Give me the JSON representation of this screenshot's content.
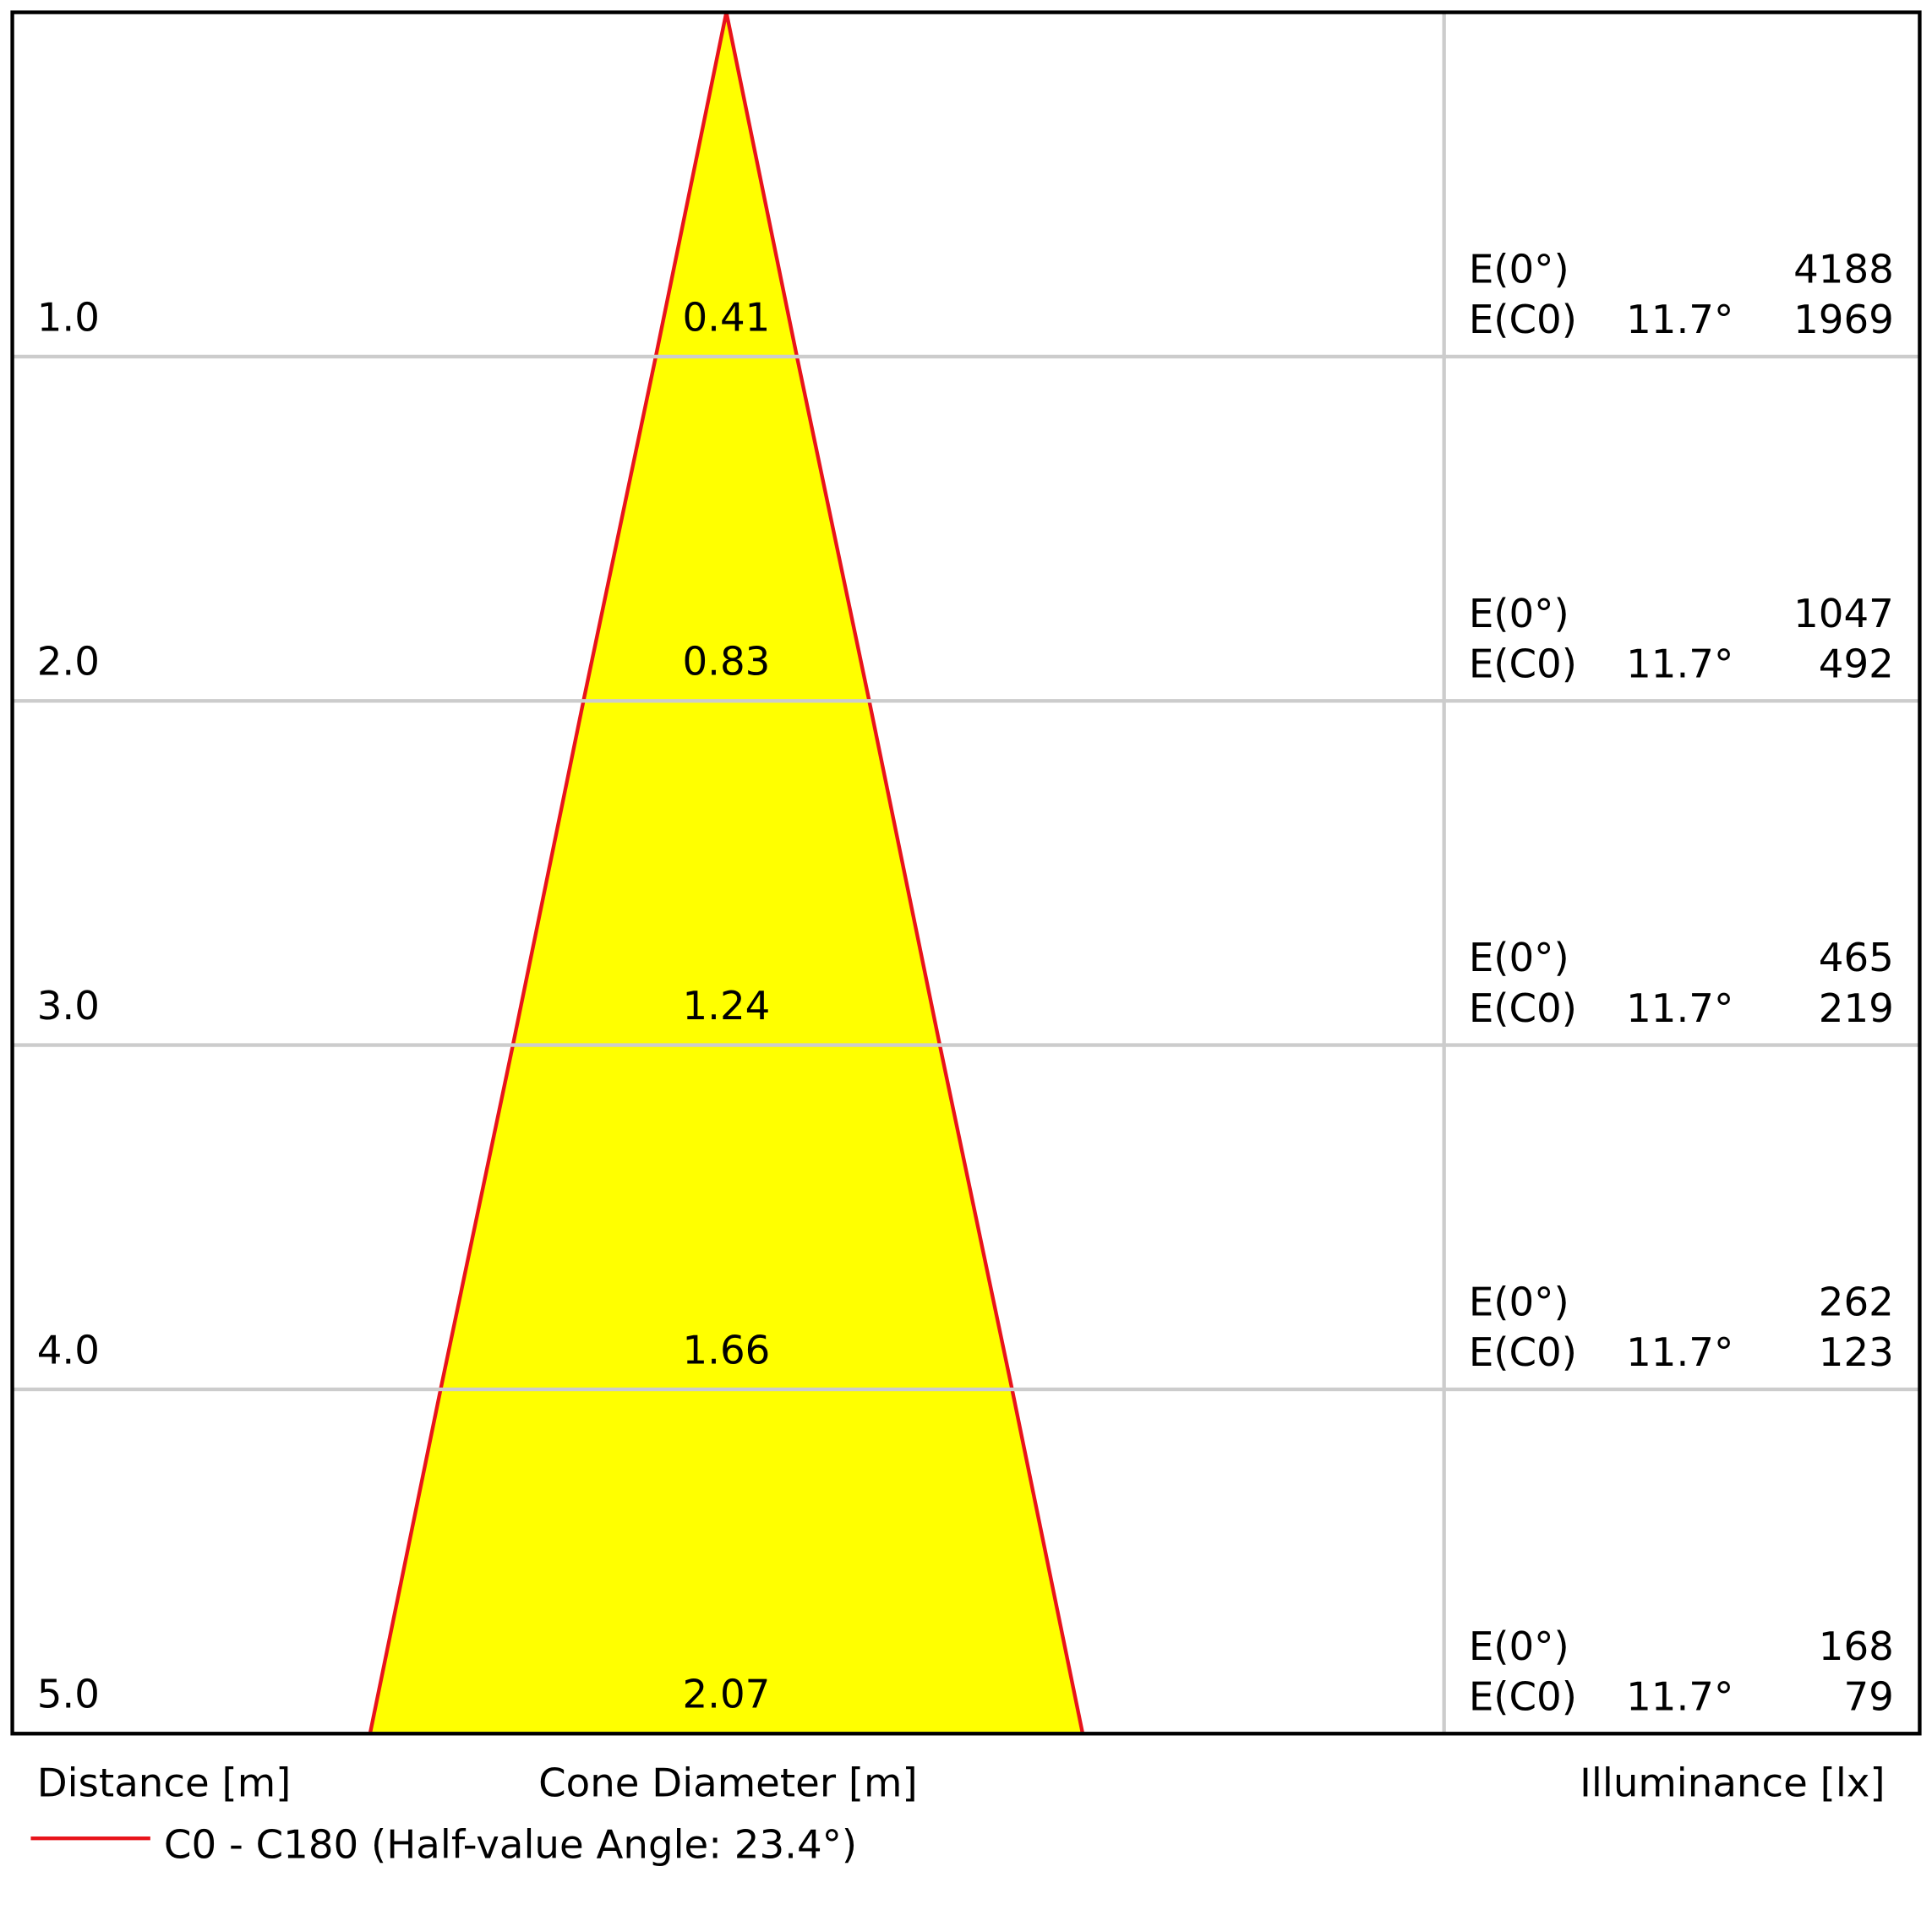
{
  "chart_data": {
    "type": "cone",
    "distances": [
      {
        "value": 1,
        "label": "1.0"
      },
      {
        "value": 2,
        "label": "2.0"
      },
      {
        "value": 3,
        "label": "3.0"
      },
      {
        "value": 4,
        "label": "4.0"
      },
      {
        "value": 5,
        "label": "5.0"
      }
    ],
    "diameters": [
      0.41,
      0.83,
      1.24,
      1.66,
      2.07
    ],
    "e0_label": "E(0°)",
    "ec0_label": "E(C0)",
    "angles": [
      "11.7°",
      "11.7°",
      "11.7°",
      "11.7°",
      "11.7°"
    ],
    "e0": [
      4188,
      1047,
      465,
      262,
      168
    ],
    "ec0": [
      1969,
      492,
      219,
      123,
      79
    ],
    "ylim": [
      0,
      5
    ],
    "distance_label": "Distance [m]",
    "diameter_label": "Cone Diameter [m]",
    "illuminance_label": "Illuminance [lx]",
    "series": [
      {
        "name": "C0 - C180 (Half-value Angle: 23.4°)",
        "color": "#e8141b"
      }
    ],
    "fill": "#ffff00"
  }
}
